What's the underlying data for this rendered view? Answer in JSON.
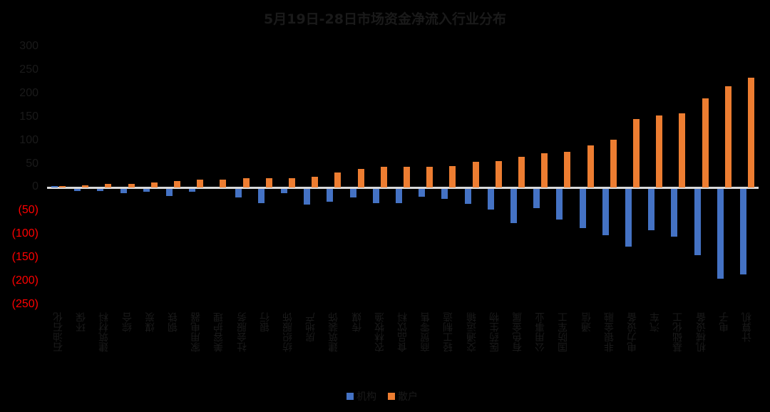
{
  "chart_data": {
    "type": "bar",
    "title": "5月19日-28日市场资金净流入行业分布",
    "xlabel": "",
    "ylabel": "",
    "ylim": [
      -250,
      300
    ],
    "yticks": [
      "300",
      "250",
      "200",
      "150",
      "100",
      "50",
      "0",
      "(50)",
      "(100)",
      "(150)",
      "(200)",
      "(250)"
    ],
    "ytick_values": [
      300,
      250,
      200,
      150,
      100,
      50,
      0,
      -50,
      -100,
      -150,
      -200,
      -250
    ],
    "negative_tick_color": "#ff0000",
    "grid": false,
    "legend_position": "bottom",
    "categories": [
      "石油石化",
      "环保",
      "建筑材料",
      "综合",
      "煤炭",
      "钢铁",
      "家用电器",
      "美容护理",
      "社会服务",
      "银行",
      "纺织服饰",
      "房地产",
      "建筑装饰",
      "传媒",
      "农林牧渔",
      "食品饮料",
      "商贸零售",
      "轻工制造",
      "交通运输",
      "医药生物",
      "有色金属",
      "公用事业",
      "国防军工",
      "通信",
      "非银金融",
      "电力设备",
      "汽车",
      "基础化工",
      "机械设备",
      "电子",
      "计算机"
    ],
    "series": [
      {
        "name": "机构",
        "color": "#4472c4",
        "values": [
          3,
          -4,
          -4,
          -8,
          -6,
          -15,
          -6,
          0,
          -18,
          -30,
          -8,
          -32,
          -27,
          -17,
          -30,
          -29,
          -16,
          -20,
          -31,
          -44,
          -72,
          -41,
          -65,
          -83,
          -98,
          -122,
          -87,
          -101,
          -140,
          -190,
          -182
        ]
      },
      {
        "name": "散户",
        "color": "#ed7d31",
        "values": [
          4,
          6,
          8,
          9,
          11,
          15,
          17,
          17,
          21,
          20,
          20,
          24,
          32,
          40,
          44,
          44,
          45,
          46,
          56,
          57,
          66,
          73,
          76,
          90,
          103,
          147,
          154,
          158,
          191,
          217,
          235
        ]
      }
    ]
  },
  "legend": {
    "items": [
      {
        "label": "机构",
        "color": "#4472c4"
      },
      {
        "label": "散户",
        "color": "#ed7d31"
      }
    ]
  }
}
